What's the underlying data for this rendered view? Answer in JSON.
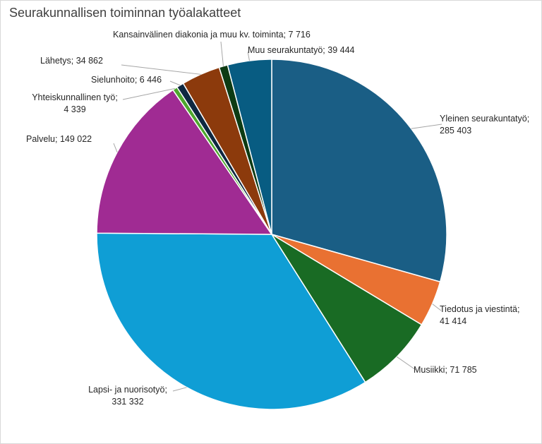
{
  "chart_data": {
    "type": "pie",
    "title": "Seurakunnallisen toiminnan työalakatteet",
    "series": [
      {
        "values": [
          {
            "label": "Yleinen seurakuntatyö",
            "value_text": "285 403",
            "value": 285403,
            "color": "#1a5e85"
          },
          {
            "label": "Tiedotus ja viestintä",
            "value_text": "41 414",
            "value": 41414,
            "color": "#e97132"
          },
          {
            "label": "Musiikki",
            "value_text": "71 785",
            "value": 71785,
            "color": "#196b24"
          },
          {
            "label": "Lapsi- ja nuorisotyö",
            "value_text": "331 332",
            "value": 331332,
            "color": "#0f9ed5"
          },
          {
            "label": "Palvelu",
            "value_text": "149 022",
            "value": 149022,
            "color": "#a02b93"
          },
          {
            "label": "Yhteiskunnallinen työ",
            "value_text": "4 339",
            "value": 4339,
            "color": "#4ea72e"
          },
          {
            "label": "Sielunhoito",
            "value_text": "6 446",
            "value": 6446,
            "color": "#0e2841"
          },
          {
            "label": "Lähetys",
            "value_text": "34 862",
            "value": 34862,
            "color": "#8c3a0c"
          },
          {
            "label": "Kansainvälinen diakonia ja muu kv. toiminta",
            "value_text": "7 716",
            "value": 7716,
            "color": "#0d3b13"
          },
          {
            "label": "Muu seurakuntatyö",
            "value_text": "39 444",
            "value": 39444,
            "color": "#085c82"
          }
        ]
      }
    ]
  }
}
